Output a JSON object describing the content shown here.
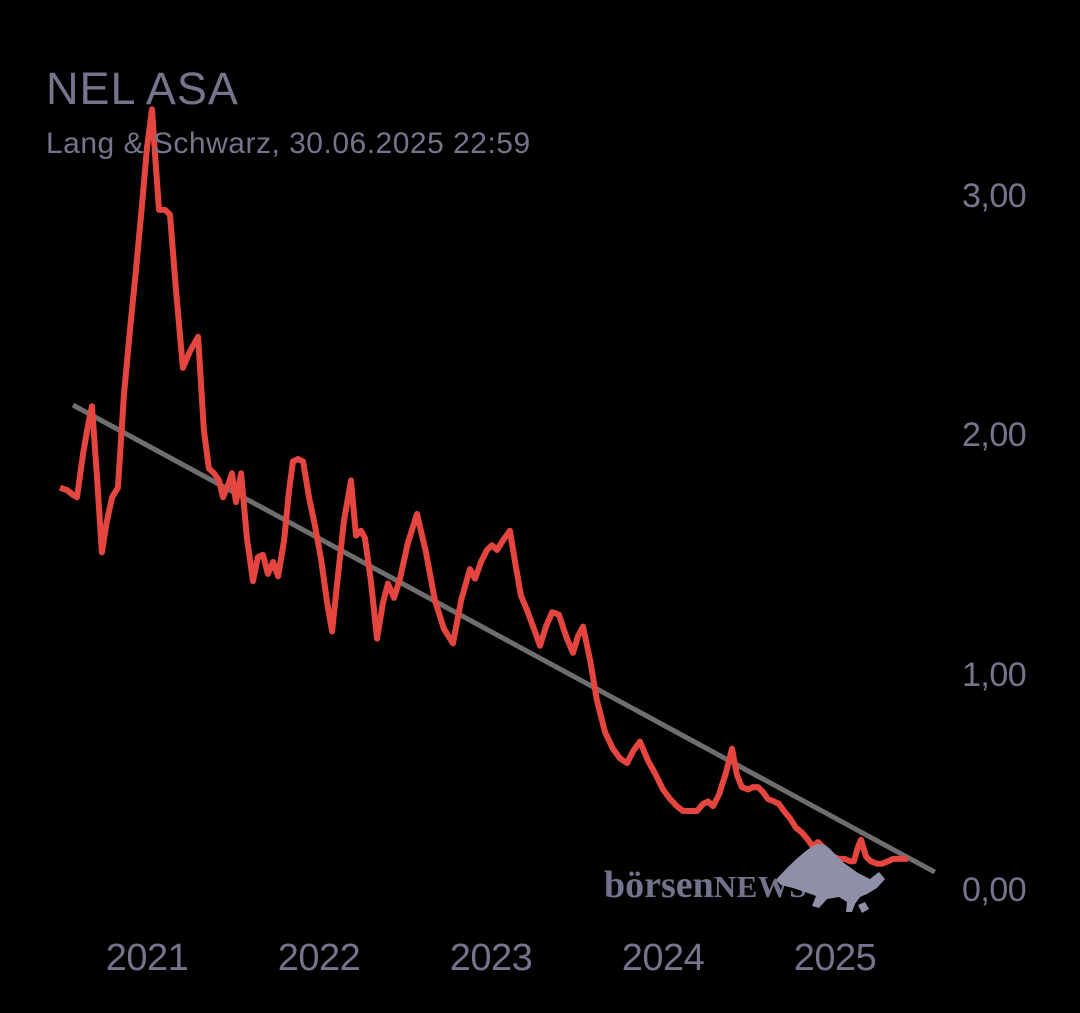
{
  "header": {
    "title": "NEL ASA",
    "subtitle": "Lang & Schwarz, 30.06.2025 22:59"
  },
  "watermark": {
    "text_regular": "börsen",
    "text_caps": "NEWS",
    "text_color": "#73738e",
    "bull_icon_color": "#8f8fa8"
  },
  "colors": {
    "background": "#000000",
    "text": "#74748c",
    "price_line": "#e5453f",
    "trend_line": "#6e6e6e"
  },
  "chart_data": {
    "type": "line",
    "title": "NEL ASA",
    "subtitle": "Lang & Schwarz, 30.06.2025 22:59",
    "xlabel": "",
    "ylabel": "",
    "grid": false,
    "legend": false,
    "xlim": [
      2020.45,
      2025.65
    ],
    "ylim": [
      0,
      3.45
    ],
    "x_ticks": [
      {
        "label": "2021",
        "value": 2021
      },
      {
        "label": "2022",
        "value": 2022
      },
      {
        "label": "2023",
        "value": 2023
      },
      {
        "label": "2024",
        "value": 2024
      },
      {
        "label": "2025",
        "value": 2025
      }
    ],
    "y_ticks": [
      {
        "label": "3,00",
        "value": 3
      },
      {
        "label": "2,00",
        "value": 2
      },
      {
        "label": "1,00",
        "value": 1
      },
      {
        "label": "0,00",
        "value": 0
      }
    ],
    "series": [
      {
        "name": "NEL ASA price (EUR)",
        "color": "#e5453f",
        "width": 6,
        "points": [
          [
            2020.494,
            1.78
          ],
          [
            2020.535,
            1.77
          ],
          [
            2020.57,
            1.75
          ],
          [
            2020.593,
            1.74
          ],
          [
            2020.628,
            1.92
          ],
          [
            2020.657,
            2.04
          ],
          [
            2020.68,
            2.12
          ],
          [
            2020.709,
            1.83
          ],
          [
            2020.738,
            1.51
          ],
          [
            2020.767,
            1.64
          ],
          [
            2020.797,
            1.74
          ],
          [
            2020.831,
            1.78
          ],
          [
            2020.866,
            2.17
          ],
          [
            2020.901,
            2.44
          ],
          [
            2020.936,
            2.69
          ],
          [
            2020.971,
            2.96
          ],
          [
            2021.0,
            3.2
          ],
          [
            2021.029,
            3.36
          ],
          [
            2021.052,
            3.12
          ],
          [
            2021.07,
            2.94
          ],
          [
            2021.105,
            2.94
          ],
          [
            2021.134,
            2.92
          ],
          [
            2021.169,
            2.6
          ],
          [
            2021.209,
            2.28
          ],
          [
            2021.25,
            2.35
          ],
          [
            2021.297,
            2.41
          ],
          [
            2021.331,
            2.02
          ],
          [
            2021.36,
            1.86
          ],
          [
            2021.39,
            1.84
          ],
          [
            2021.419,
            1.81
          ],
          [
            2021.442,
            1.74
          ],
          [
            2021.471,
            1.79
          ],
          [
            2021.494,
            1.84
          ],
          [
            2021.517,
            1.72
          ],
          [
            2021.547,
            1.84
          ],
          [
            2021.581,
            1.57
          ],
          [
            2021.616,
            1.39
          ],
          [
            2021.645,
            1.49
          ],
          [
            2021.674,
            1.5
          ],
          [
            2021.703,
            1.42
          ],
          [
            2021.733,
            1.47
          ],
          [
            2021.762,
            1.41
          ],
          [
            2021.797,
            1.56
          ],
          [
            2021.826,
            1.77
          ],
          [
            2021.849,
            1.89
          ],
          [
            2021.878,
            1.9
          ],
          [
            2021.907,
            1.89
          ],
          [
            2021.942,
            1.74
          ],
          [
            2021.977,
            1.62
          ],
          [
            2022.012,
            1.48
          ],
          [
            2022.047,
            1.3
          ],
          [
            2022.076,
            1.18
          ],
          [
            2022.11,
            1.41
          ],
          [
            2022.145,
            1.64
          ],
          [
            2022.186,
            1.81
          ],
          [
            2022.215,
            1.58
          ],
          [
            2022.244,
            1.6
          ],
          [
            2022.267,
            1.57
          ],
          [
            2022.302,
            1.39
          ],
          [
            2022.337,
            1.15
          ],
          [
            2022.372,
            1.3
          ],
          [
            2022.401,
            1.38
          ],
          [
            2022.436,
            1.32
          ],
          [
            2022.471,
            1.4
          ],
          [
            2022.517,
            1.55
          ],
          [
            2022.57,
            1.67
          ],
          [
            2022.622,
            1.51
          ],
          [
            2022.674,
            1.31
          ],
          [
            2022.727,
            1.19
          ],
          [
            2022.779,
            1.13
          ],
          [
            2022.826,
            1.31
          ],
          [
            2022.878,
            1.44
          ],
          [
            2022.907,
            1.4
          ],
          [
            2022.942,
            1.47
          ],
          [
            2022.977,
            1.52
          ],
          [
            2023.006,
            1.54
          ],
          [
            2023.035,
            1.52
          ],
          [
            2023.07,
            1.56
          ],
          [
            2023.11,
            1.6
          ],
          [
            2023.145,
            1.45
          ],
          [
            2023.174,
            1.33
          ],
          [
            2023.209,
            1.27
          ],
          [
            2023.25,
            1.19
          ],
          [
            2023.285,
            1.12
          ],
          [
            2023.32,
            1.2
          ],
          [
            2023.355,
            1.26
          ],
          [
            2023.395,
            1.25
          ],
          [
            2023.436,
            1.16
          ],
          [
            2023.477,
            1.09
          ],
          [
            2023.506,
            1.16
          ],
          [
            2023.535,
            1.2
          ],
          [
            2023.576,
            1.06
          ],
          [
            2023.616,
            0.89
          ],
          [
            2023.663,
            0.76
          ],
          [
            2023.709,
            0.69
          ],
          [
            2023.75,
            0.65
          ],
          [
            2023.791,
            0.63
          ],
          [
            2023.826,
            0.68
          ],
          [
            2023.866,
            0.72
          ],
          [
            2023.913,
            0.64
          ],
          [
            2023.959,
            0.58
          ],
          [
            2024.0,
            0.52
          ],
          [
            2024.041,
            0.48
          ],
          [
            2024.081,
            0.45
          ],
          [
            2024.116,
            0.43
          ],
          [
            2024.157,
            0.43
          ],
          [
            2024.198,
            0.43
          ],
          [
            2024.233,
            0.46
          ],
          [
            2024.262,
            0.47
          ],
          [
            2024.291,
            0.45
          ],
          [
            2024.326,
            0.5
          ],
          [
            2024.366,
            0.59
          ],
          [
            2024.401,
            0.69
          ],
          [
            2024.43,
            0.58
          ],
          [
            2024.459,
            0.53
          ],
          [
            2024.494,
            0.52
          ],
          [
            2024.523,
            0.53
          ],
          [
            2024.552,
            0.53
          ],
          [
            2024.581,
            0.51
          ],
          [
            2024.61,
            0.48
          ],
          [
            2024.645,
            0.47
          ],
          [
            2024.674,
            0.46
          ],
          [
            2024.703,
            0.43
          ],
          [
            2024.738,
            0.4
          ],
          [
            2024.773,
            0.36
          ],
          [
            2024.808,
            0.34
          ],
          [
            2024.843,
            0.31
          ],
          [
            2024.872,
            0.28
          ],
          [
            2024.901,
            0.3
          ],
          [
            2024.93,
            0.28
          ],
          [
            2024.959,
            0.26
          ],
          [
            2024.988,
            0.24
          ],
          [
            2025.023,
            0.23
          ],
          [
            2025.058,
            0.23
          ],
          [
            2025.087,
            0.22
          ],
          [
            2025.11,
            0.22
          ],
          [
            2025.134,
            0.28
          ],
          [
            2025.151,
            0.31
          ],
          [
            2025.18,
            0.24
          ],
          [
            2025.209,
            0.22
          ],
          [
            2025.244,
            0.21
          ],
          [
            2025.273,
            0.21
          ],
          [
            2025.308,
            0.22
          ],
          [
            2025.337,
            0.23
          ],
          [
            2025.366,
            0.23
          ],
          [
            2025.395,
            0.23
          ],
          [
            2025.424,
            0.23
          ]
        ]
      },
      {
        "name": "downtrend line",
        "color": "#6e6e6e",
        "width": 5,
        "points": [
          [
            2020.57,
            2.125
          ],
          [
            2025.58,
            0.175
          ]
        ]
      }
    ]
  }
}
